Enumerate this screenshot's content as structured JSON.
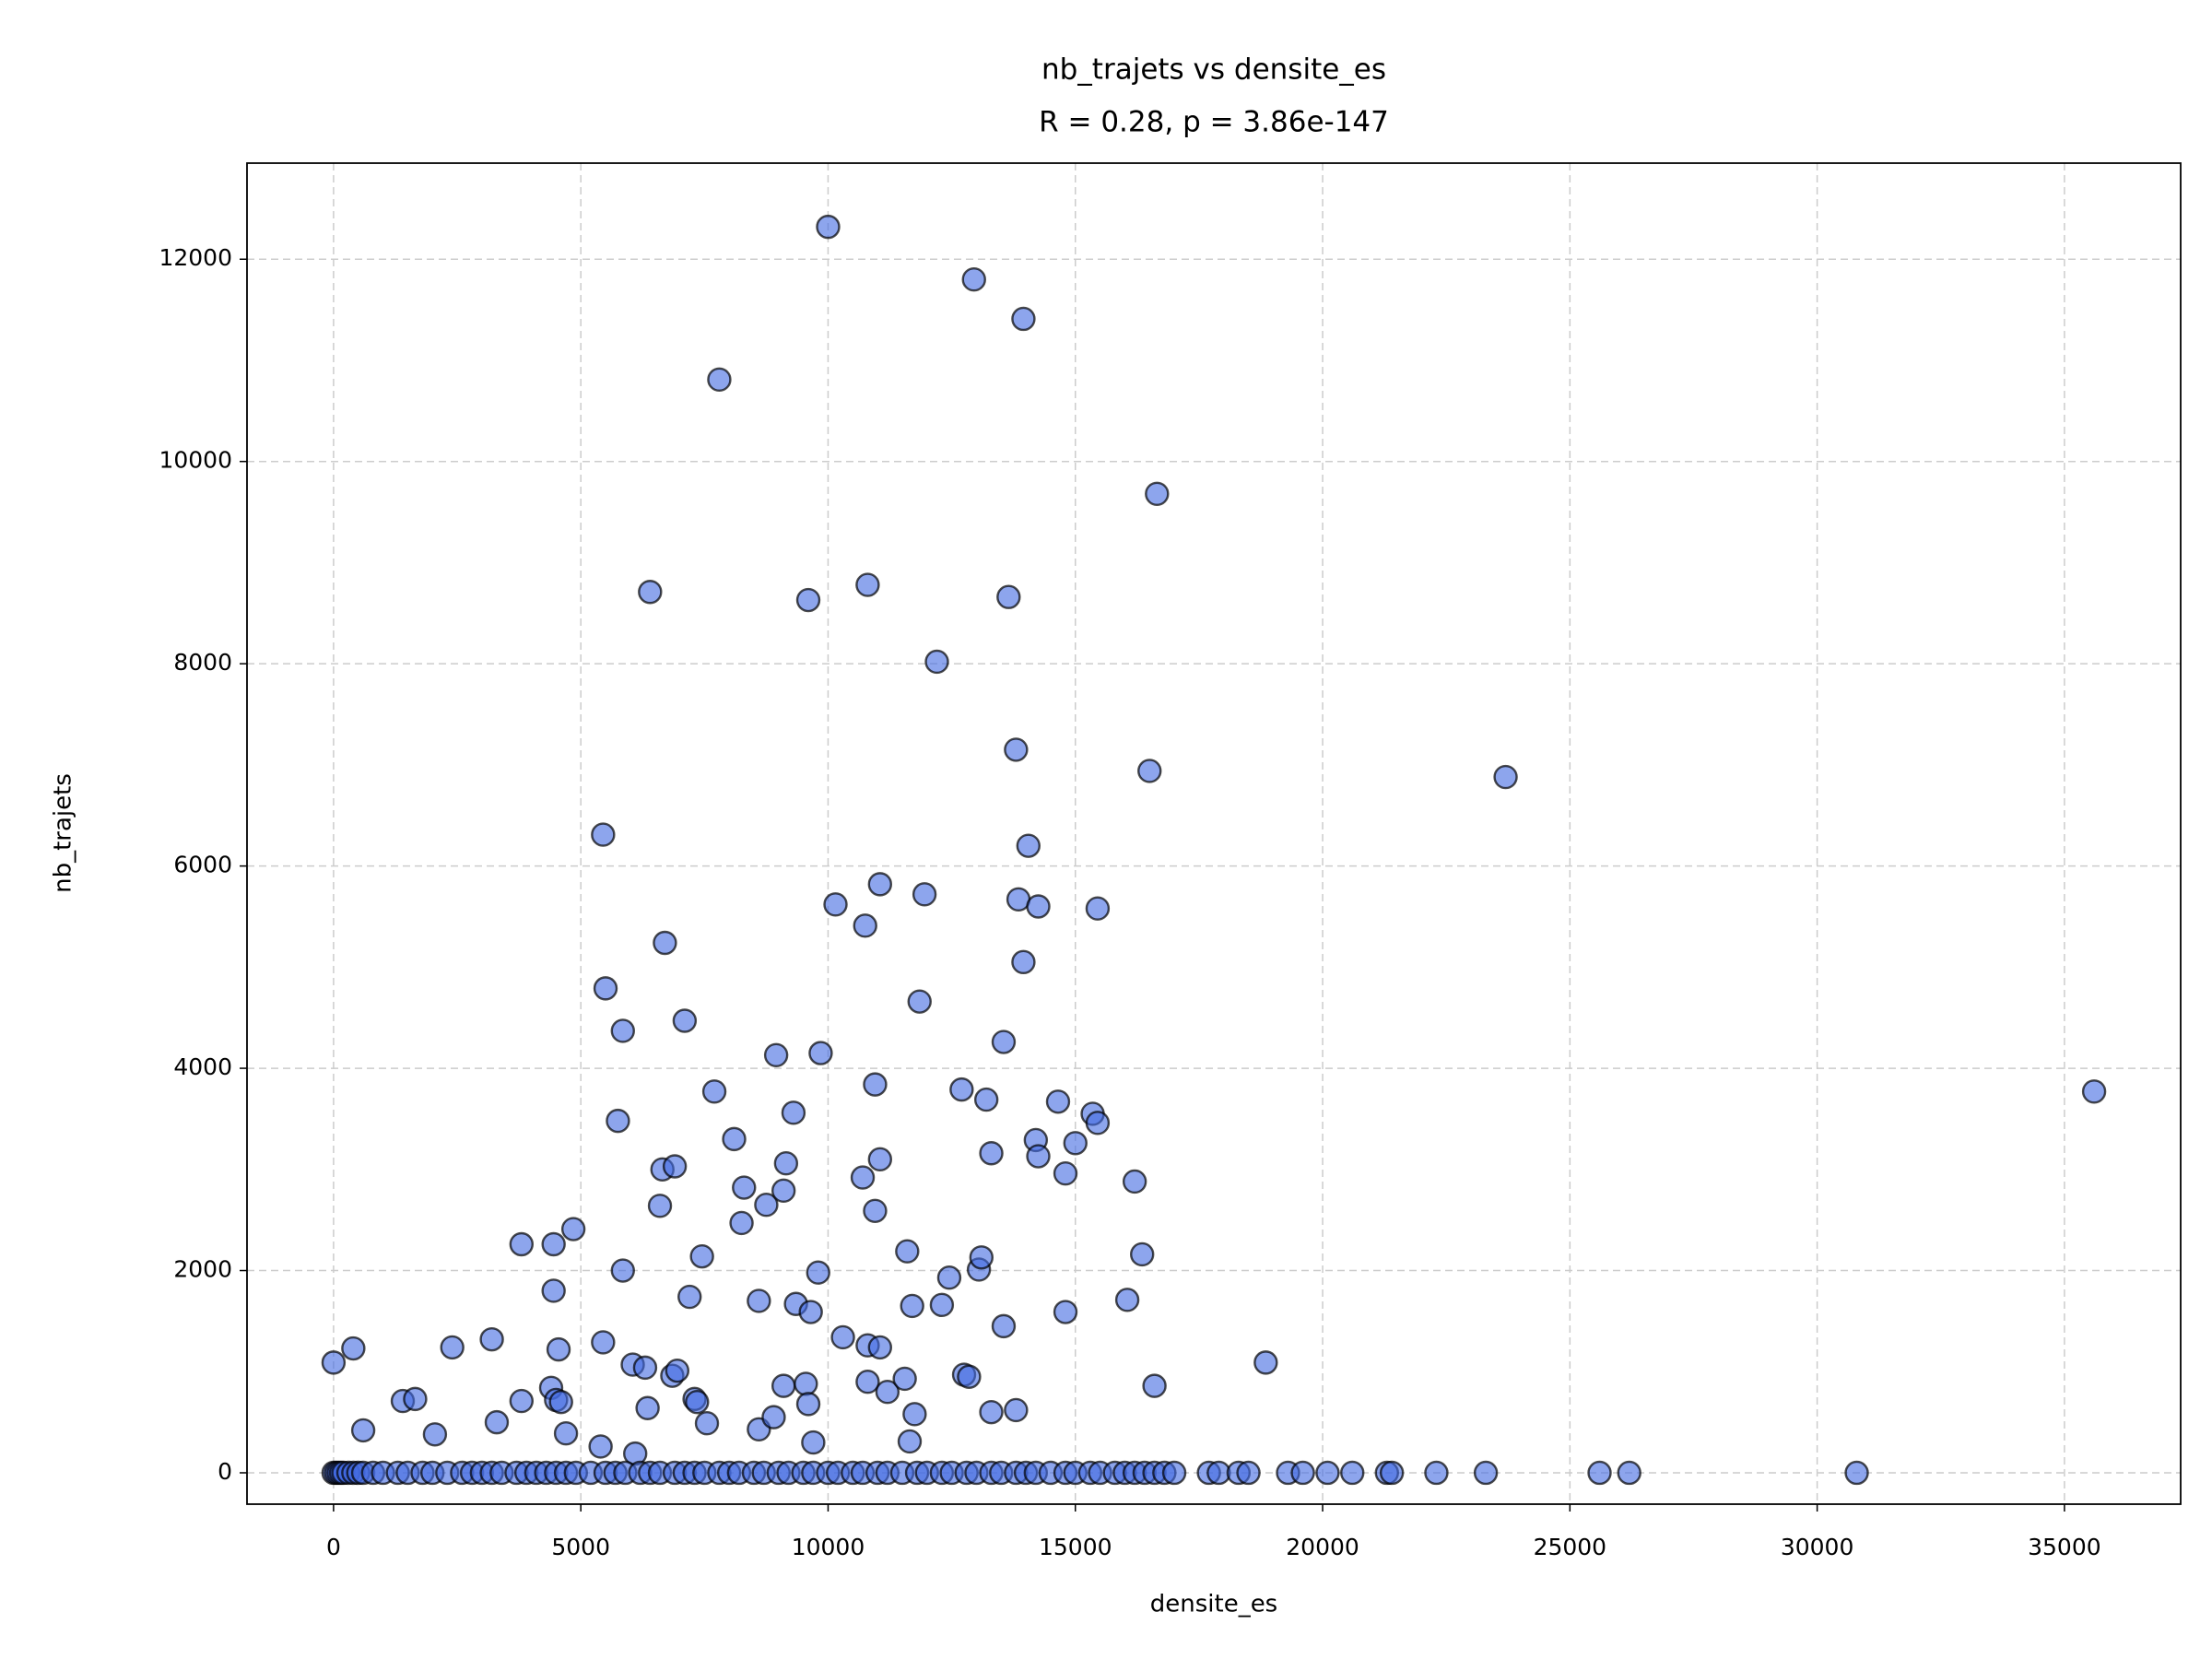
{
  "chart_data": {
    "type": "scatter",
    "title": "nb_trajets vs densite_es",
    "subtitle": "R = 0.28, p = 3.86e-147",
    "x_label": "densite_es",
    "y_label": "nb_trajets",
    "color": "#4169e1",
    "edge_color": "#000000",
    "grid": true,
    "xlim": [
      -1750,
      37350
    ],
    "ylim": [
      -310,
      12950
    ],
    "xticks": [
      0,
      5000,
      10000,
      15000,
      20000,
      25000,
      30000,
      35000
    ],
    "yticks": [
      0,
      2000,
      4000,
      6000,
      8000,
      10000,
      12000
    ],
    "x": [
      0,
      400,
      600,
      1400,
      1650,
      2050,
      2400,
      3200,
      3300,
      3800,
      3800,
      4400,
      4450,
      4450,
      4500,
      4550,
      4600,
      4700,
      4850,
      5400,
      5450,
      5450,
      5500,
      5750,
      5850,
      5850,
      6050,
      6100,
      6300,
      6350,
      6400,
      6600,
      6650,
      6700,
      6850,
      6900,
      6950,
      7100,
      7200,
      7300,
      7350,
      7450,
      7550,
      7700,
      7800,
      8100,
      8250,
      8300,
      8600,
      8600,
      8750,
      8900,
      8950,
      9100,
      9150,
      9100,
      9300,
      9350,
      9550,
      9600,
      9600,
      9650,
      9700,
      9800,
      9850,
      10000,
      10150,
      10300,
      10700,
      10750,
      10800,
      10800,
      10800,
      10950,
      10950,
      11050,
      11050,
      11050,
      11200,
      11550,
      11600,
      11650,
      11700,
      11750,
      11850,
      11950,
      12200,
      12300,
      12450,
      12700,
      12750,
      12850,
      12950,
      13050,
      13100,
      13200,
      13300,
      13300,
      13550,
      13550,
      13650,
      13800,
      13800,
      13850,
      13950,
      13950,
      14050,
      14200,
      14250,
      14250,
      14650,
      14800,
      14800,
      15000,
      15350,
      15450,
      15450,
      16050,
      16200,
      16350,
      16500,
      16600,
      16650,
      18850,
      23700,
      35600,
      0,
      50,
      100,
      150,
      200,
      300,
      400,
      500,
      600,
      800,
      1000,
      1300,
      1500,
      1800,
      2000,
      2300,
      2600,
      2800,
      3000,
      3200,
      3400,
      3700,
      3900,
      4100,
      4300,
      4500,
      4700,
      4900,
      5200,
      5500,
      5700,
      5900,
      6200,
      6400,
      6600,
      6900,
      7100,
      7300,
      7500,
      7800,
      8000,
      8200,
      8500,
      8700,
      9000,
      9200,
      9500,
      9700,
      10000,
      10200,
      10500,
      10700,
      11000,
      11200,
      11500,
      11800,
      12000,
      12300,
      12500,
      12800,
      13000,
      13300,
      13500,
      13800,
      14000,
      14200,
      14500,
      14800,
      15000,
      15300,
      15500,
      15800,
      16000,
      16200,
      16400,
      16600,
      16800,
      17000,
      17700,
      17900,
      18300,
      18500,
      19300,
      19600,
      20100,
      20600,
      21300,
      21400,
      22300,
      23300,
      25600,
      26200,
      30800
    ],
    "values": [
      1090,
      1230,
      420,
      710,
      730,
      380,
      1240,
      1320,
      500,
      710,
      2260,
      840,
      2260,
      1800,
      720,
      1220,
      700,
      390,
      2410,
      260,
      6310,
      1290,
      4790,
      3480,
      4370,
      2000,
      1070,
      190,
      1040,
      640,
      8710,
      2640,
      3000,
      5240,
      960,
      3030,
      1010,
      4470,
      1740,
      730,
      700,
      2140,
      490,
      3770,
      10810,
      3300,
      2470,
      2820,
      1700,
      430,
      2650,
      550,
      4130,
      2790,
      3060,
      860,
      3560,
      1670,
      880,
      680,
      8630,
      1590,
      300,
      1980,
      4150,
      12320,
      5620,
      1340,
      2920,
      5410,
      8780,
      1260,
      900,
      3840,
      2590,
      3100,
      5820,
      1240,
      800,
      930,
      2190,
      310,
      1650,
      580,
      4660,
      5720,
      8020,
      1660,
      1930,
      3790,
      970,
      950,
      11800,
      2010,
      2130,
      3690,
      3160,
      600,
      1450,
      4260,
      8660,
      620,
      7150,
      5670,
      5050,
      11410,
      6200,
      3290,
      5600,
      3130,
      3670,
      2960,
      1590,
      3260,
      3550,
      3460,
      5580,
      1710,
      2880,
      2160,
      6940,
      860,
      9680,
      1090,
      6880,
      3770,
      0,
      0,
      0,
      0,
      0,
      0,
      0,
      0,
      0,
      0,
      0,
      0,
      0,
      0,
      0,
      0,
      0,
      0,
      0,
      0,
      0,
      0,
      0,
      0,
      0,
      0,
      0,
      0,
      0,
      0,
      0,
      0,
      0,
      0,
      0,
      0,
      0,
      0,
      0,
      0,
      0,
      0,
      0,
      0,
      0,
      0,
      0,
      0,
      0,
      0,
      0,
      0,
      0,
      0,
      0,
      0,
      0,
      0,
      0,
      0,
      0,
      0,
      0,
      0,
      0,
      0,
      0,
      0,
      0,
      0,
      0,
      0,
      0,
      0,
      0,
      0,
      0,
      0,
      0,
      0,
      0,
      0,
      0,
      0,
      0,
      0,
      0,
      0,
      0,
      0,
      0,
      0,
      0
    ]
  }
}
